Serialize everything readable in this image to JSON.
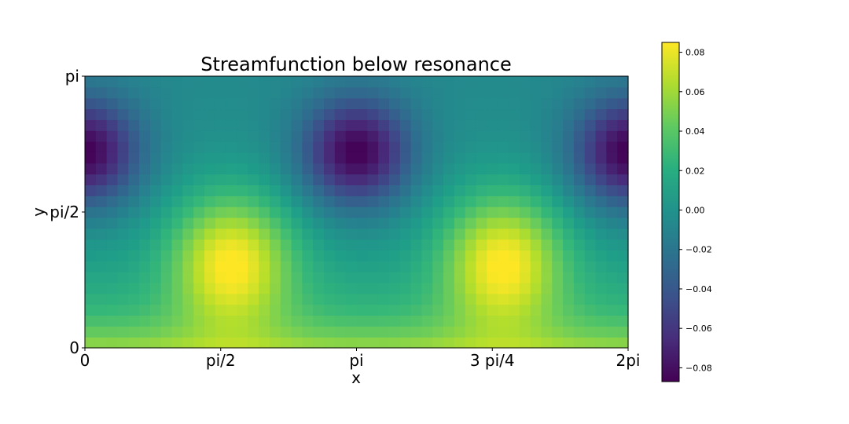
{
  "chart_data": {
    "type": "heatmap",
    "title": "Streamfunction below resonance",
    "xlabel": "x",
    "ylabel": "y",
    "x_ticks": [
      "0",
      "pi/2",
      "pi",
      "3 pi/4",
      "2pi"
    ],
    "y_ticks": [
      "0",
      "pi/2",
      "pi"
    ],
    "grid": {
      "nx": 50,
      "ny": 25
    },
    "field": {
      "description": "psi(x,y) = 0.06*sin(y)*sin(2x)*(1+0.3*cos y) - 0.04*cos(2x)*sin(y)*(1 - 0.5*cos y)... approximated; peaks near x≈0.27·2pi,0.77·2pi, y≈0.3pi; troughs near x≈0,0.5·2pi,1·2pi, y≈0.7pi",
      "peak_value": 0.085,
      "trough_value": -0.087
    },
    "colorbar": {
      "colormap": "viridis",
      "vmin": -0.087,
      "vmax": 0.085,
      "ticks": [
        "0.08",
        "0.06",
        "0.04",
        "0.02",
        "0.00",
        "−0.02",
        "−0.04",
        "−0.06",
        "−0.08"
      ],
      "tick_values": [
        0.08,
        0.06,
        0.04,
        0.02,
        0.0,
        -0.02,
        -0.04,
        -0.06,
        -0.08
      ]
    }
  }
}
